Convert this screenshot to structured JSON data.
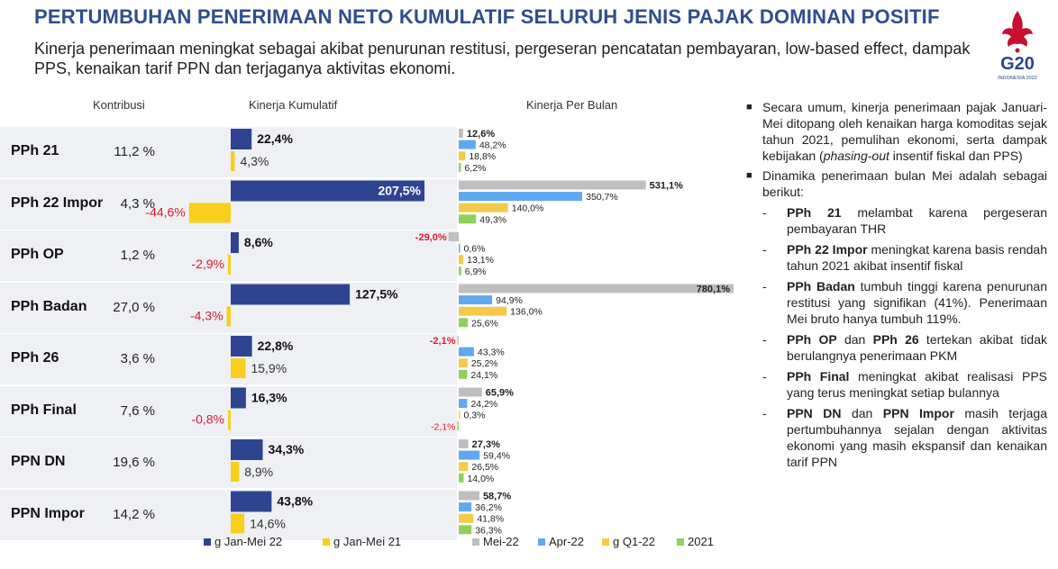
{
  "title": "PERTUMBUHAN PENERIMAAN NETO KUMULATIF SELURUH JENIS PAJAK DOMINAN POSITIF",
  "subtitle": "Kinerja penerimaan meningkat sebagai akibat penurunan restitusi, pergeseran pencatatan pembayaran, low-based effect, dampak PPS, kenaikan tarif PPN dan terjaganya aktivitas ekonomi.",
  "logo": {
    "text": "G20",
    "subtext": "INDONESIA 2022"
  },
  "headers": {
    "contrib": "Kontribusi",
    "kumulatif": "Kinerja Kumulatif",
    "bulanan": "Kinerja Per Bulan"
  },
  "colors": {
    "navy": "#2e4491",
    "yellow": "#f7cf1c",
    "gray": "#bfbfbf",
    "blue": "#5fa9f0",
    "gold": "#f5c94a",
    "green": "#8fd15e",
    "neg": "#e0192d"
  },
  "chart_data": [
    {
      "type": "bar",
      "title": "Kinerja Kumulatif",
      "categories": [
        "PPh 21",
        "PPh 22 Impor",
        "PPh OP",
        "PPh Badan",
        "PPh 26",
        "PPh Final",
        "PPN DN",
        "PPN Impor"
      ],
      "contribution": [
        "11,2 %",
        "4,3 %",
        "1,2 %",
        "27,0 %",
        "3,6 %",
        "7,6 %",
        "19,6 %",
        "14,2 %"
      ],
      "series": [
        {
          "name": "g Jan-Mei 22",
          "values": [
            22.4,
            207.5,
            8.6,
            127.5,
            22.8,
            16.3,
            34.3,
            43.8
          ],
          "labels": [
            "22,4%",
            "207,5%",
            "8,6%",
            "127,5%",
            "22,8%",
            "16,3%",
            "34,3%",
            "43,8%"
          ]
        },
        {
          "name": "g Jan-Mei 21",
          "values": [
            4.3,
            -44.6,
            -2.9,
            -4.3,
            15.9,
            -0.8,
            8.9,
            14.6
          ],
          "labels": [
            "4,3%",
            "-44,6%",
            "-2,9%",
            "-4,3%",
            "15,9%",
            "-0,8%",
            "8,9%",
            "14,6%"
          ]
        }
      ],
      "legend": "bottom"
    },
    {
      "type": "bar",
      "title": "Kinerja Per Bulan",
      "categories": [
        "PPh 21",
        "PPh 22 Impor",
        "PPh OP",
        "PPh Badan",
        "PPh 26",
        "PPh Final",
        "PPN DN",
        "PPN Impor"
      ],
      "series": [
        {
          "name": "Mei-22",
          "values": [
            12.6,
            531.1,
            -29.0,
            780.1,
            -2.1,
            65.9,
            27.3,
            58.7
          ],
          "labels": [
            "12,6%",
            "531,1%",
            "-29,0%",
            "780,1%",
            "-2,1%",
            "65,9%",
            "27,3%",
            "58,7%"
          ]
        },
        {
          "name": "Apr-22",
          "values": [
            48.2,
            350.7,
            0.6,
            94.9,
            43.3,
            24.2,
            59.4,
            36.2
          ],
          "labels": [
            "48,2%",
            "350,7%",
            "0,6%",
            "94,9%",
            "43,3%",
            "24,2%",
            "59,4%",
            "36,2%"
          ]
        },
        {
          "name": "g  Q1-22",
          "values": [
            18.8,
            140.0,
            13.1,
            136.0,
            25.2,
            0.3,
            26.5,
            41.8
          ],
          "labels": [
            "18,8%",
            "140,0%",
            "13,1%",
            "136,0%",
            "25,2%",
            "0,3%",
            "26,5%",
            "41,8%"
          ]
        },
        {
          "name": "2021",
          "values": [
            6.2,
            49.3,
            6.9,
            25.6,
            24.1,
            -2.1,
            14.0,
            36.3
          ],
          "labels": [
            "6,2%",
            "49,3%",
            "6,9%",
            "25,6%",
            "24,1%",
            "-2,1%",
            "14,0%",
            "36,3%"
          ]
        }
      ],
      "legend": "bottom"
    }
  ],
  "notes": {
    "b1_text": "Secara umum, kinerja penerimaan pajak Januari-Mei ditopang oleh kenaikan harga komoditas sejak tahun 2021, pemulihan ekonomi, serta dampak kebijakan (",
    "b1_italic": "phasing-out",
    "b1_tail": " insentif fiskal dan PPS)",
    "b2_text": "Dinamika penerimaan bulan Mei adalah sebagai berikut:",
    "d1_strong": "PPh 21",
    "d1_text": " melambat karena pergeseran pembayaran THR",
    "d2_strong": "PPh 22 Impor",
    "d2_text": " meningkat karena basis rendah tahun 2021 akibat insentif fiskal",
    "d3_strong": "PPh Badan",
    "d3_text": " tumbuh tinggi karena penurunan restitusi yang signifikan (41%). Penerimaan Mei bruto hanya tumbuh 119%.",
    "d4_strong_a": "PPh OP",
    "d4_mid": " dan ",
    "d4_strong_b": "PPh 26",
    "d4_text": " tertekan akibat tidak berulangnya penerimaan PKM",
    "d5_strong": "PPh Final",
    "d5_text": " meningkat akibat realisasi PPS yang terus meningkat setiap bulannya",
    "d6_strong_a": "PPN DN",
    "d6_mid": " dan ",
    "d6_strong_b": "PPN Impor",
    "d6_text": " masih terjaga pertumbuhannya sejalan dengan aktivitas ekonomi yang masih ekspansif dan kenaikan tarif PPN"
  }
}
